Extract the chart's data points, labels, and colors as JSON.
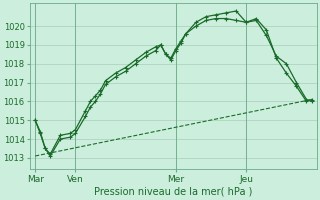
{
  "title": "",
  "xlabel": "Pression niveau de la mer( hPa )",
  "background_color": "#cceedd",
  "grid_color": "#aaccbb",
  "line_color": "#1a6b2a",
  "ylim": [
    1012.4,
    1021.2
  ],
  "yticks": [
    1013,
    1014,
    1015,
    1016,
    1017,
    1018,
    1019,
    1020
  ],
  "day_labels": [
    "Mar",
    "Ven",
    "Mer",
    "Jeu"
  ],
  "day_positions": [
    0,
    8,
    28,
    42
  ],
  "xlim": [
    -1,
    56
  ],
  "series1_x": [
    0,
    1,
    2,
    3,
    5,
    7,
    8,
    10,
    11,
    12,
    13,
    14,
    16,
    18,
    20,
    22,
    24,
    25,
    26,
    27,
    28,
    29,
    30,
    32,
    34,
    36,
    38,
    40,
    42,
    44,
    46,
    48,
    50,
    52,
    54,
    55
  ],
  "series1_y": [
    1015.0,
    1014.4,
    1013.5,
    1013.2,
    1014.2,
    1014.3,
    1014.5,
    1015.5,
    1016.0,
    1016.3,
    1016.6,
    1017.1,
    1017.5,
    1017.8,
    1018.2,
    1018.6,
    1018.9,
    1019.0,
    1018.5,
    1018.3,
    1018.8,
    1019.2,
    1019.6,
    1020.0,
    1020.3,
    1020.4,
    1020.4,
    1020.3,
    1020.2,
    1020.3,
    1019.5,
    1018.4,
    1018.0,
    1017.0,
    1016.1,
    1016.0
  ],
  "series2_x": [
    0,
    1,
    2,
    3,
    5,
    7,
    8,
    10,
    11,
    12,
    13,
    14,
    16,
    18,
    20,
    22,
    24,
    25,
    26,
    27,
    28,
    29,
    30,
    32,
    34,
    36,
    38,
    40,
    42,
    44,
    46,
    48,
    50,
    52,
    54,
    55
  ],
  "series2_y": [
    1015.0,
    1014.3,
    1013.5,
    1013.1,
    1014.0,
    1014.1,
    1014.3,
    1015.2,
    1015.7,
    1016.0,
    1016.4,
    1016.9,
    1017.3,
    1017.6,
    1018.0,
    1018.4,
    1018.7,
    1019.0,
    1018.5,
    1018.2,
    1018.7,
    1019.1,
    1019.6,
    1020.2,
    1020.5,
    1020.6,
    1020.7,
    1020.8,
    1020.2,
    1020.4,
    1019.8,
    1018.3,
    1017.5,
    1016.8,
    1016.0,
    1016.1
  ],
  "series3_x": [
    0,
    55
  ],
  "series3_y": [
    1013.1,
    1016.1
  ]
}
